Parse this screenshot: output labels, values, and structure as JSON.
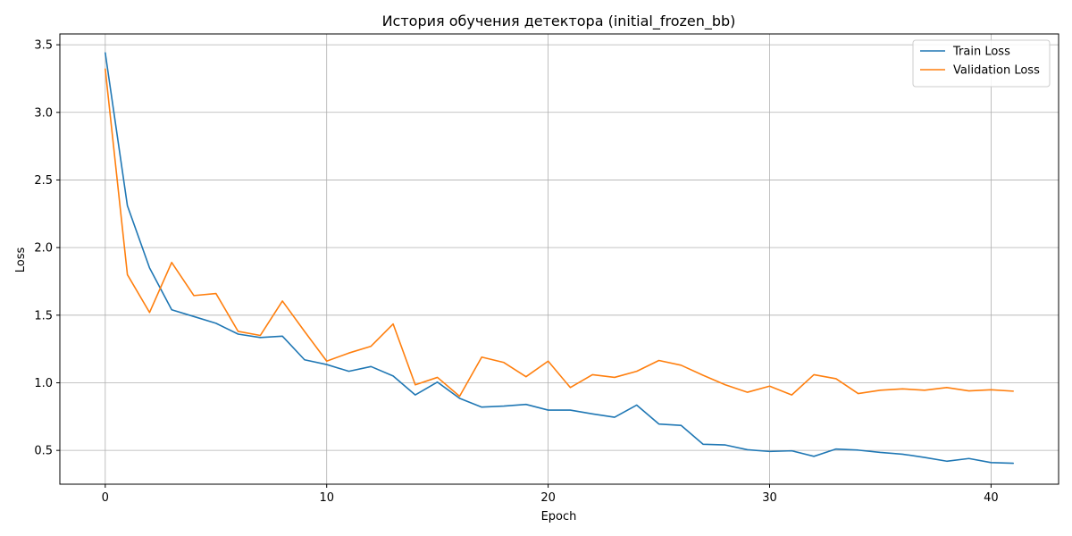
{
  "chart_data": {
    "type": "line",
    "title": "История обучения детектора (initial_frozen_bb)",
    "xlabel": "Epoch",
    "ylabel": "Loss",
    "xlim": [
      -2.05,
      43.05
    ],
    "ylim": [
      0.25,
      3.58
    ],
    "xticks": [
      0,
      10,
      20,
      30,
      40
    ],
    "yticks": [
      0.5,
      1.0,
      1.5,
      2.0,
      2.5,
      3.0,
      3.5
    ],
    "grid": true,
    "legend_position": "top-right",
    "x": [
      0,
      1,
      2,
      3,
      4,
      5,
      6,
      7,
      8,
      9,
      10,
      11,
      12,
      13,
      14,
      15,
      16,
      17,
      18,
      19,
      20,
      21,
      22,
      23,
      24,
      25,
      26,
      27,
      28,
      29,
      30,
      31,
      32,
      33,
      34,
      35,
      36,
      37,
      38,
      39,
      40,
      41
    ],
    "series": [
      {
        "name": "Train Loss",
        "color": "#1f77b4",
        "values": [
          3.44,
          2.31,
          1.85,
          1.54,
          1.49,
          1.44,
          1.36,
          1.335,
          1.345,
          1.17,
          1.135,
          1.085,
          1.12,
          1.05,
          0.91,
          1.005,
          0.885,
          0.82,
          0.828,
          0.84,
          0.798,
          0.798,
          0.77,
          0.745,
          0.835,
          0.695,
          0.685,
          0.545,
          0.54,
          0.505,
          0.492,
          0.497,
          0.456,
          0.51,
          0.502,
          0.485,
          0.472,
          0.448,
          0.42,
          0.44,
          0.41,
          0.405
        ]
      },
      {
        "name": "Validation Loss",
        "color": "#ff7f0e",
        "values": [
          3.32,
          1.8,
          1.52,
          1.89,
          1.645,
          1.66,
          1.38,
          1.35,
          1.605,
          1.38,
          1.16,
          1.22,
          1.27,
          1.435,
          0.985,
          1.04,
          0.9,
          1.19,
          1.15,
          1.045,
          1.16,
          0.965,
          1.06,
          1.04,
          1.085,
          1.165,
          1.13,
          1.055,
          0.985,
          0.93,
          0.975,
          0.91,
          1.06,
          1.03,
          0.92,
          0.945,
          0.955,
          0.945,
          0.965,
          0.94,
          0.948,
          0.938
        ]
      }
    ]
  }
}
